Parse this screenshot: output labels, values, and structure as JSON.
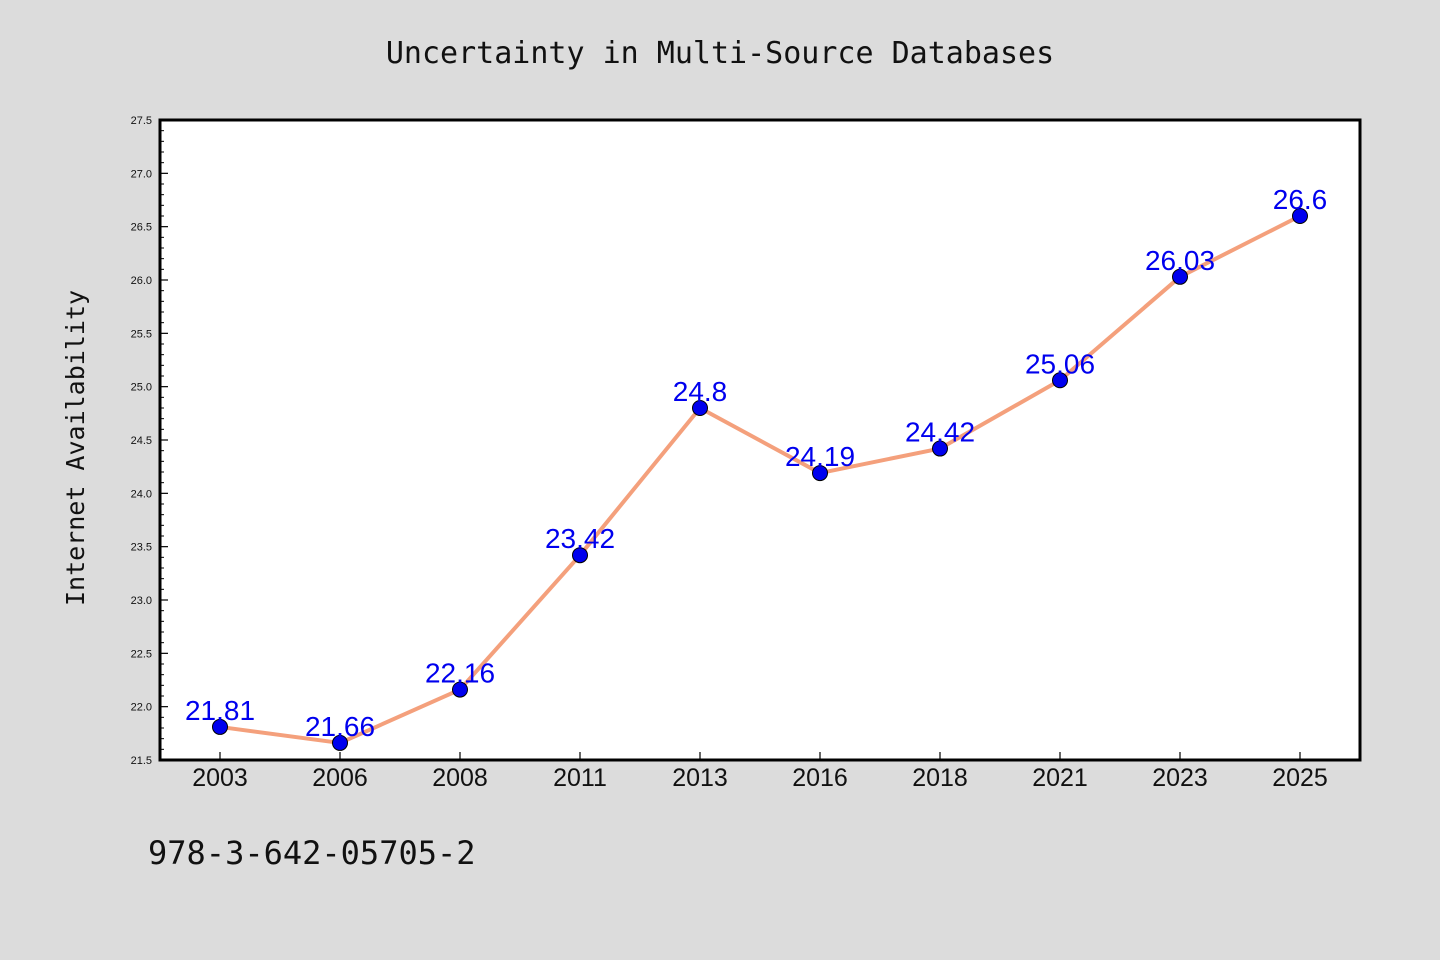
{
  "chart_data": {
    "type": "line",
    "title": "Uncertainty in Multi-Source Databases",
    "xlabel": "",
    "ylabel": "Internet Availability",
    "categories": [
      "2003",
      "2006",
      "2008",
      "2011",
      "2013",
      "2016",
      "2018",
      "2021",
      "2023",
      "2025"
    ],
    "series": [
      {
        "values": [
          21.81,
          21.66,
          22.16,
          23.42,
          24.8,
          24.19,
          24.42,
          25.06,
          26.03,
          26.6
        ]
      }
    ],
    "data_labels": [
      "21.81",
      "21.66",
      "22.16",
      "23.42",
      "24.8",
      "24.19",
      "24.42",
      "25.06",
      "26.03",
      "26.6"
    ],
    "ylim": [
      21.5,
      27.5
    ],
    "yticks": [
      "21.5",
      "22.0",
      "22.5",
      "23.0",
      "23.5",
      "24.0",
      "24.5",
      "25.0",
      "25.5",
      "26.0",
      "26.5",
      "27.0",
      "27.5"
    ],
    "grid": false,
    "legend": "none",
    "colors": {
      "line": "#f4a07c",
      "marker": "#0000ee",
      "label": "#0000ee",
      "background": "#dcdcdc",
      "plot_background": "#ffffff"
    },
    "footer_text": "978-3-642-05705-2"
  }
}
